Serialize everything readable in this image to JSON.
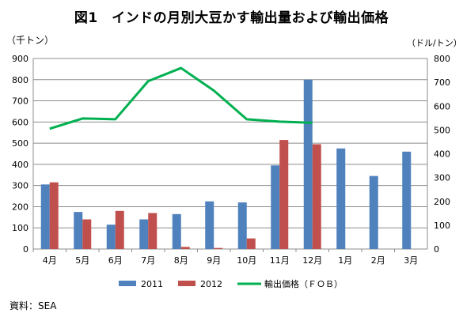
{
  "chart_data": {
    "type": "bar",
    "title": "図1　インドの月別大豆かす輸出量および輸出価格",
    "left_axis_label": "（千トン）",
    "right_axis_label": "（ドル/トン）",
    "source": "資料：SEA",
    "categories": [
      "4月",
      "5月",
      "6月",
      "7月",
      "8月",
      "9月",
      "10月",
      "11月",
      "12月",
      "1月",
      "2月",
      "3月"
    ],
    "ylim_left": [
      0,
      900
    ],
    "yticks_left": [
      "0",
      "100",
      "200",
      "300",
      "400",
      "500",
      "600",
      "700",
      "800",
      "900"
    ],
    "ylim_right": [
      0,
      800
    ],
    "yticks_right": [
      "0",
      "100",
      "200",
      "300",
      "400",
      "500",
      "600",
      "700",
      "800"
    ],
    "grid": true,
    "legend_position": "bottom",
    "series": [
      {
        "name": "2011",
        "type": "bar",
        "axis": "left",
        "color": "#4F81BD",
        "values": [
          305,
          175,
          115,
          140,
          165,
          225,
          220,
          395,
          800,
          475,
          345,
          460
        ]
      },
      {
        "name": "2012",
        "type": "bar",
        "axis": "left",
        "color": "#C0504D",
        "values": [
          315,
          140,
          180,
          170,
          10,
          5,
          50,
          515,
          495,
          null,
          null,
          null
        ]
      },
      {
        "name": "輸出価格（ＦＯＢ）",
        "type": "line",
        "axis": "right",
        "color": "#00B050",
        "values": [
          505,
          548,
          545,
          705,
          760,
          665,
          545,
          535,
          530,
          null,
          null,
          null
        ]
      }
    ]
  }
}
